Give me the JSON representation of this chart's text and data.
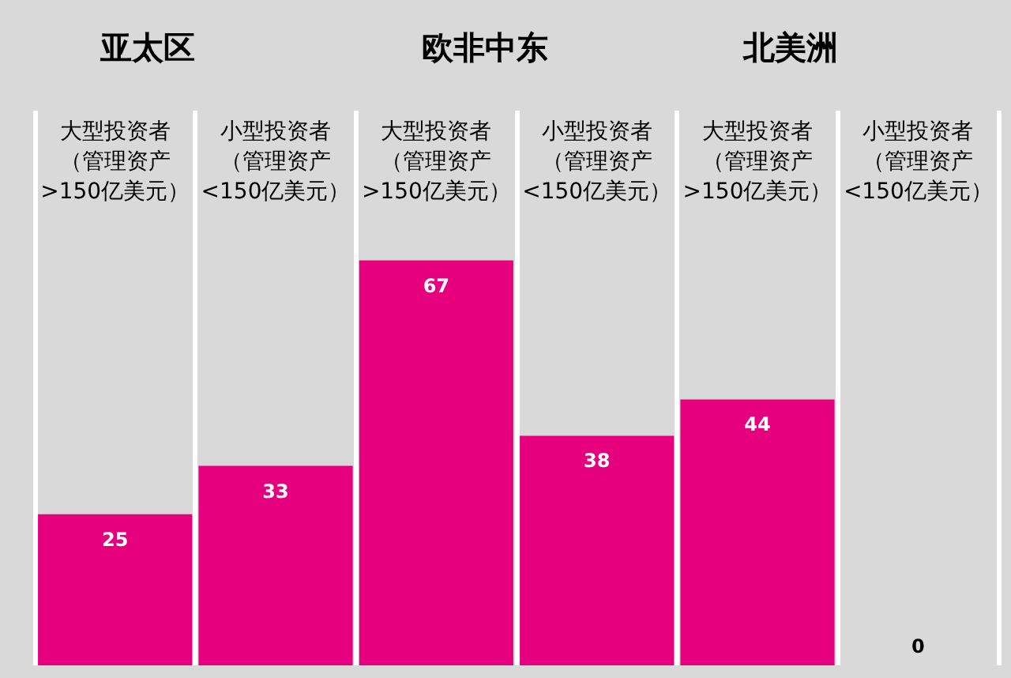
{
  "chart_data": {
    "type": "bar",
    "categories": [
      "大型投资者（管理资产>150亿美元）",
      "小型投资者（管理资产<150亿美元）",
      "大型投资者（管理资产>150亿美元）",
      "小型投资者（管理资产<150亿美元）",
      "大型投资者（管理资产>150亿美元）",
      "小型投资者（管理资产<150亿美元）"
    ],
    "values": [
      25,
      33,
      67,
      38,
      44,
      0
    ],
    "color": "#e6007e",
    "annotations": [
      "亚太区",
      "欧非中东",
      "北美洲"
    ],
    "data_labels": true,
    "grid": "x"
  }
}
